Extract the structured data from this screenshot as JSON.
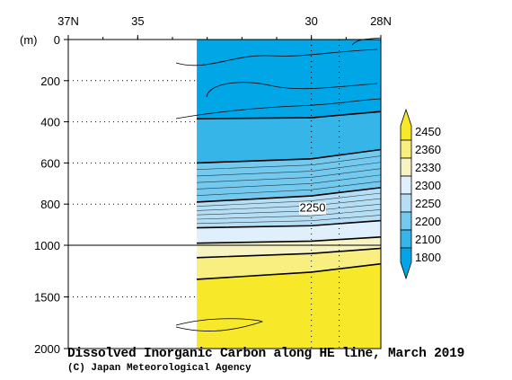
{
  "chart_data": {
    "type": "heatmap",
    "title": "Dissolved Inorganic Carbon along HE line, March 2019",
    "credit": "(C) Japan Meteorological Agency",
    "x_ticks": [
      "37N",
      "35",
      "30",
      "28N"
    ],
    "y_unit": "(m)",
    "y_ticks": [
      "0",
      "200",
      "400",
      "600",
      "800",
      "1000",
      "1500",
      "2000"
    ],
    "x_range": [
      37,
      28
    ],
    "depth_range": [
      0,
      2000
    ],
    "depth_scale_break": 1000,
    "data_start_lat": 33.3,
    "colorbar": {
      "levels": [
        1800,
        2100,
        2200,
        2250,
        2300,
        2330,
        2360,
        2450
      ],
      "labels": [
        "1800",
        "2100",
        "2200",
        "2250",
        "2300",
        "2330",
        "2360",
        "2450"
      ],
      "colors": [
        "#00a6e6",
        "#35b5e8",
        "#74c9ee",
        "#b6def5",
        "#dfeffb",
        "#f7f3c2",
        "#f9ee80",
        "#f7e82a"
      ]
    },
    "contour_label": "2250",
    "bands": [
      {
        "class": 0,
        "top": [
          0,
          0,
          0
        ],
        "bottom": [
          385,
          380,
          350
        ]
      },
      {
        "class": 1,
        "top": [
          385,
          380,
          350
        ],
        "bottom": [
          600,
          580,
          535
        ]
      },
      {
        "class": 2,
        "top": [
          600,
          580,
          535
        ],
        "bottom": [
          790,
          760,
          720
        ]
      },
      {
        "class": 3,
        "top": [
          790,
          760,
          720
        ],
        "bottom": [
          915,
          905,
          880
        ]
      },
      {
        "class": 4,
        "top": [
          915,
          905,
          880
        ],
        "bottom": [
          990,
          980,
          960
        ]
      },
      {
        "class": 5,
        "top": [
          990,
          980,
          960
        ],
        "bottom": [
          1120,
          1080,
          1030
        ]
      },
      {
        "class": 6,
        "top": [
          1120,
          1080,
          1030
        ],
        "bottom": [
          1330,
          1260,
          1180
        ]
      },
      {
        "class": 7,
        "top": [
          1330,
          1260,
          1180
        ],
        "bottom": [
          2000,
          2000,
          2000
        ]
      }
    ],
    "contour_depths": [
      [
        385,
        380,
        350
      ],
      [
        600,
        580,
        535
      ],
      [
        790,
        760,
        720
      ],
      [
        915,
        905,
        880
      ],
      [
        990,
        980,
        960
      ],
      [
        1120,
        1080,
        1030
      ],
      [
        1330,
        1260,
        1180
      ]
    ],
    "band_lats": [
      33.3,
      30,
      28
    ]
  }
}
